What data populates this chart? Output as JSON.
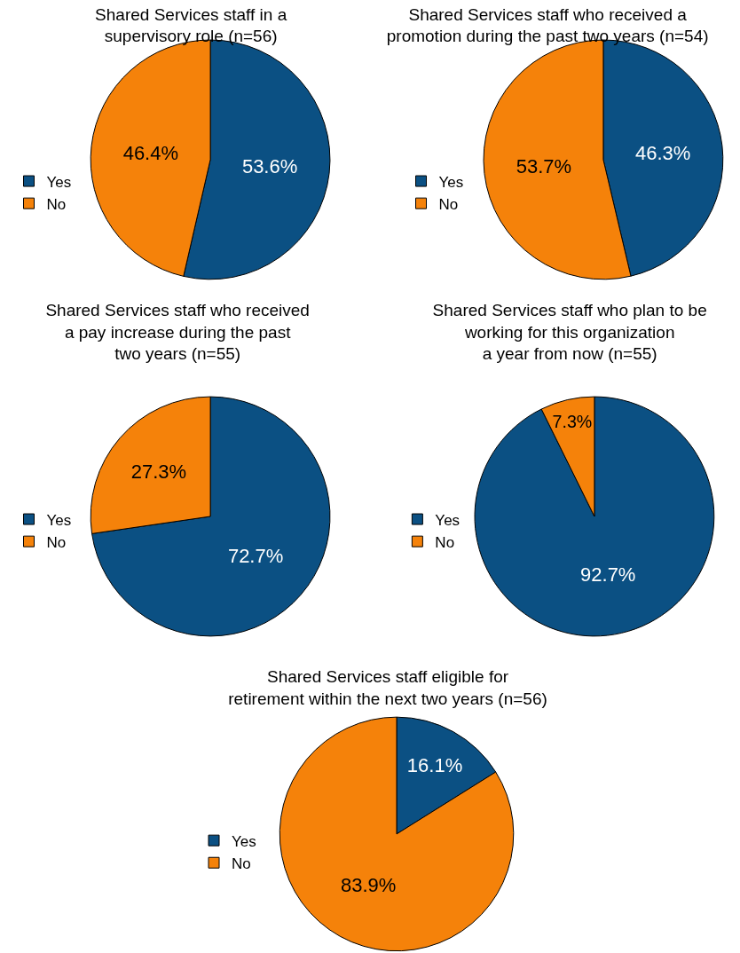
{
  "chart_data": [
    {
      "type": "pie",
      "title": "Shared Services staff in a\nsupervisory role (n=56)",
      "categories": [
        "Yes",
        "No"
      ],
      "values": [
        53.6,
        46.4
      ],
      "value_labels": [
        "53.6%",
        "46.4%"
      ],
      "colors": [
        "#0b5083",
        "#f5820a"
      ],
      "legend": "left"
    },
    {
      "type": "pie",
      "title": "Shared Services staff who received a\npromotion during the past two years (n=54)",
      "categories": [
        "Yes",
        "No"
      ],
      "values": [
        46.3,
        53.7
      ],
      "value_labels": [
        "46.3%",
        "53.7%"
      ],
      "colors": [
        "#0b5083",
        "#f5820a"
      ],
      "legend": "left"
    },
    {
      "type": "pie",
      "title": "Shared Services staff who received\na pay increase during the past\ntwo years (n=55)",
      "categories": [
        "Yes",
        "No"
      ],
      "values": [
        72.7,
        27.3
      ],
      "value_labels": [
        "72.7%",
        "27.3%"
      ],
      "colors": [
        "#0b5083",
        "#f5820a"
      ],
      "legend": "left"
    },
    {
      "type": "pie",
      "title": "Shared Services staff who plan to be\nworking for this organization\na year from now (n=55)",
      "categories": [
        "Yes",
        "No"
      ],
      "values": [
        92.7,
        7.3
      ],
      "value_labels": [
        "92.7%",
        "7.3%"
      ],
      "colors": [
        "#0b5083",
        "#f5820a"
      ],
      "legend": "left"
    },
    {
      "type": "pie",
      "title": "Shared Services staff eligible for\nretirement within the next two years (n=56)",
      "categories": [
        "Yes",
        "No"
      ],
      "values": [
        16.1,
        83.9
      ],
      "value_labels": [
        "16.1%",
        "83.9%"
      ],
      "colors": [
        "#0b5083",
        "#f5820a"
      ],
      "legend": "left"
    }
  ]
}
